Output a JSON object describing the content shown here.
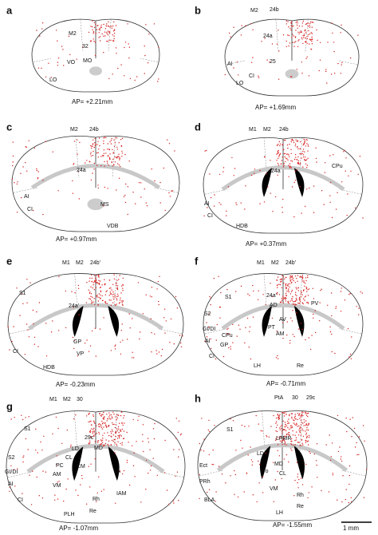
{
  "panels": [
    {
      "letter": "a",
      "regions": [
        "M2",
        "32",
        "VO",
        "MO",
        "LO"
      ],
      "ap": "AP= +2.21mm"
    },
    {
      "letter": "b",
      "regions": [
        "M2",
        "24b",
        "24a",
        "25",
        "AI",
        "CI",
        "LO"
      ],
      "ap": "AP= +1.69mm"
    },
    {
      "letter": "c",
      "regions": [
        "M2",
        "24b",
        "24a",
        "AI",
        "CI",
        "MS",
        "VDB"
      ],
      "ap": "AP= +0.97mm"
    },
    {
      "letter": "d",
      "regions": [
        "M1",
        "M2",
        "24b",
        "24a",
        "CPu",
        "AI",
        "CI",
        "HDB"
      ],
      "ap": "AP= +0.37mm"
    },
    {
      "letter": "e",
      "regions": [
        "M1",
        "M2",
        "24b'",
        "S1",
        "24a'",
        "GP",
        "VP",
        "CI",
        "HDB"
      ],
      "ap": "AP= -0.23mm"
    },
    {
      "letter": "f",
      "regions": [
        "M1",
        "M2",
        "24b'",
        "S1",
        "24a'",
        "AD",
        "PV",
        "S2",
        "GI/DI",
        "CPu",
        "PT",
        "AV",
        "AM",
        "GP",
        "AI",
        "CI",
        "LH",
        "Re"
      ],
      "ap": "AP= -0.71mm"
    },
    {
      "letter": "g",
      "regions": [
        "M1",
        "M2",
        "30",
        "S1",
        "29c",
        "S2",
        "GI/DI",
        "LD",
        "MD",
        "CL",
        "PC",
        "CM",
        "AM",
        "VA",
        "IAM",
        "VM",
        "AI",
        "CI",
        "Rh",
        "PLH",
        "Re"
      ],
      "ap": "AP= -1.07mm"
    },
    {
      "letter": "h",
      "regions": [
        "PtA",
        "30",
        "29c",
        "S1",
        "LPMR",
        "LD",
        "MD",
        "Ect",
        "Po",
        "CL",
        "PRh",
        "VM",
        "Rh",
        "BLA",
        "Re",
        "LH"
      ],
      "ap": "AP= -1.55mm"
    }
  ],
  "scale_bar": "1 mm"
}
